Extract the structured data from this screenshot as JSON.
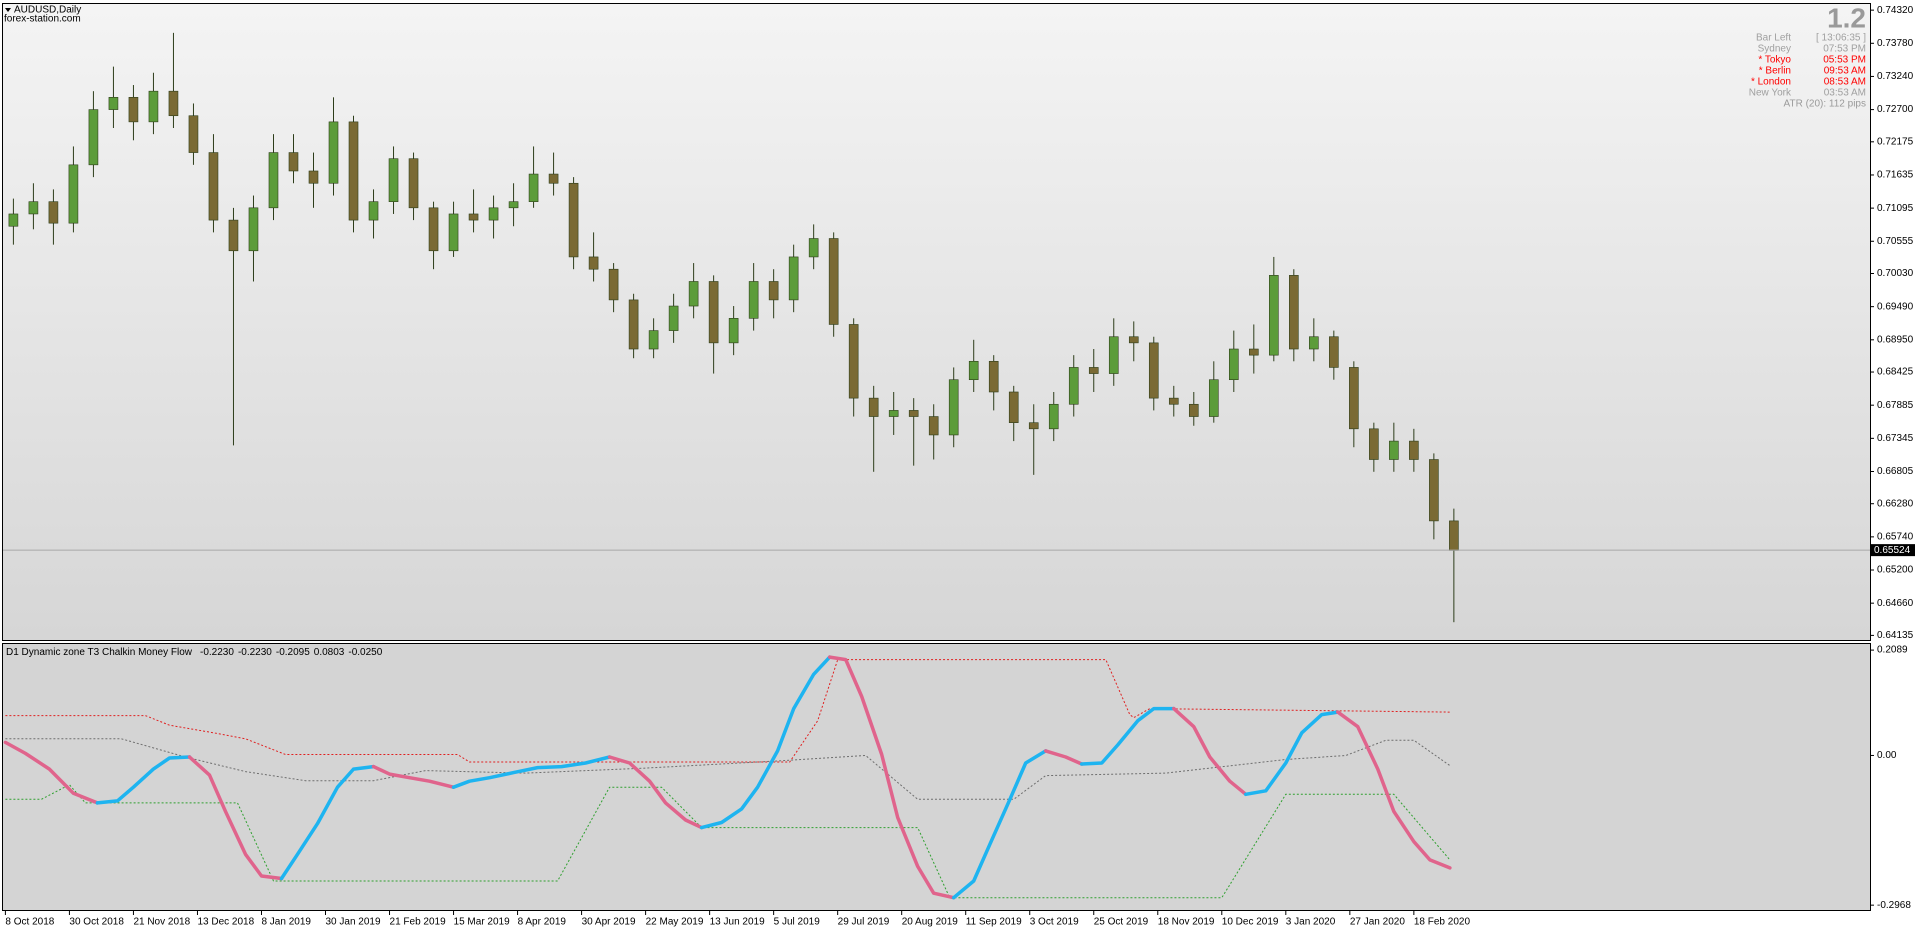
{
  "header": {
    "symbol": "AUDUSD,Daily",
    "source": "forex-station.com"
  },
  "info": {
    "big": "1.2",
    "rows": [
      {
        "label": "Bar Left",
        "value": "[ 13:06:35 ]",
        "color": "#a0a0a0"
      },
      {
        "label": "Sydney",
        "value": "07:53 PM",
        "color": "#a0a0a0"
      },
      {
        "label": "* Tokyo",
        "value": "05:53 PM",
        "color": "#ff0000"
      },
      {
        "label": "* Berlin",
        "value": "09:53 AM",
        "color": "#ff0000"
      },
      {
        "label": "* London",
        "value": "08:53 AM",
        "color": "#ff0000"
      },
      {
        "label": "New York",
        "value": "03:53 AM",
        "color": "#a0a0a0"
      }
    ],
    "atr": "ATR (20): 112 pips"
  },
  "chart_data": [
    {
      "type": "candlestick",
      "x": [
        2,
        7,
        12,
        17,
        22,
        27,
        32,
        37,
        42,
        47,
        52,
        57,
        62,
        67,
        72,
        77,
        82,
        87,
        92,
        97,
        102,
        107,
        112,
        117,
        122,
        127,
        132,
        137,
        142,
        147,
        152,
        157,
        162,
        167,
        172,
        177,
        182,
        187,
        192,
        197,
        202,
        207,
        212,
        217,
        222,
        227,
        232,
        237,
        242,
        247,
        252,
        257,
        262,
        267,
        272,
        277,
        282,
        287,
        292,
        297,
        302,
        307,
        312,
        317,
        322,
        327,
        332,
        337,
        342,
        347,
        352,
        357,
        362
      ],
      "open": [
        0.708,
        0.71,
        0.712,
        0.7085,
        0.718,
        0.727,
        0.729,
        0.725,
        0.73,
        0.726,
        0.72,
        0.709,
        0.704,
        0.711,
        0.72,
        0.717,
        0.715,
        0.725,
        0.709,
        0.712,
        0.719,
        0.711,
        0.704,
        0.71,
        0.709,
        0.711,
        0.712,
        0.7165,
        0.715,
        0.703,
        0.701,
        0.696,
        0.688,
        0.691,
        0.695,
        0.699,
        0.689,
        0.693,
        0.699,
        0.696,
        0.703,
        0.706,
        0.692,
        0.68,
        0.677,
        0.678,
        0.677,
        0.674,
        0.683,
        0.686,
        0.681,
        0.676,
        0.675,
        0.679,
        0.685,
        0.684,
        0.69,
        0.689,
        0.68,
        0.679,
        0.677,
        0.683,
        0.688,
        0.687,
        0.7,
        0.688,
        0.69,
        0.685,
        0.675,
        0.67,
        0.673,
        0.67,
        0.66
      ],
      "high": [
        0.7125,
        0.715,
        0.714,
        0.721,
        0.73,
        0.734,
        0.731,
        0.733,
        0.7395,
        0.728,
        0.723,
        0.711,
        0.713,
        0.723,
        0.723,
        0.72,
        0.729,
        0.726,
        0.714,
        0.721,
        0.72,
        0.712,
        0.712,
        0.714,
        0.713,
        0.715,
        0.721,
        0.72,
        0.716,
        0.707,
        0.702,
        0.697,
        0.693,
        0.697,
        0.702,
        0.7,
        0.695,
        0.702,
        0.701,
        0.705,
        0.7083,
        0.707,
        0.693,
        0.682,
        0.681,
        0.68,
        0.679,
        0.685,
        0.6895,
        0.687,
        0.682,
        0.679,
        0.681,
        0.687,
        0.688,
        0.693,
        0.6925,
        0.69,
        0.682,
        0.681,
        0.686,
        0.691,
        0.692,
        0.703,
        0.701,
        0.693,
        0.691,
        0.686,
        0.676,
        0.676,
        0.675,
        0.671,
        0.662
      ],
      "low": [
        0.705,
        0.7075,
        0.705,
        0.707,
        0.716,
        0.724,
        0.722,
        0.723,
        0.724,
        0.718,
        0.707,
        0.6723,
        0.699,
        0.709,
        0.715,
        0.711,
        0.713,
        0.707,
        0.706,
        0.71,
        0.709,
        0.701,
        0.703,
        0.707,
        0.706,
        0.708,
        0.711,
        0.713,
        0.701,
        0.699,
        0.694,
        0.6865,
        0.6865,
        0.689,
        0.693,
        0.684,
        0.687,
        0.691,
        0.693,
        0.694,
        0.701,
        0.69,
        0.677,
        0.668,
        0.674,
        0.669,
        0.67,
        0.672,
        0.681,
        0.678,
        0.673,
        0.6675,
        0.673,
        0.677,
        0.681,
        0.682,
        0.686,
        0.678,
        0.677,
        0.6755,
        0.676,
        0.681,
        0.684,
        0.686,
        0.686,
        0.686,
        0.683,
        0.672,
        0.668,
        0.668,
        0.668,
        0.657,
        0.6435
      ],
      "close": [
        0.71,
        0.712,
        0.7085,
        0.718,
        0.727,
        0.729,
        0.725,
        0.73,
        0.726,
        0.72,
        0.709,
        0.704,
        0.711,
        0.72,
        0.717,
        0.715,
        0.725,
        0.709,
        0.712,
        0.719,
        0.711,
        0.704,
        0.71,
        0.709,
        0.711,
        0.712,
        0.7165,
        0.715,
        0.703,
        0.701,
        0.696,
        0.688,
        0.691,
        0.695,
        0.699,
        0.689,
        0.693,
        0.699,
        0.696,
        0.703,
        0.706,
        0.692,
        0.68,
        0.677,
        0.678,
        0.677,
        0.674,
        0.683,
        0.686,
        0.681,
        0.676,
        0.675,
        0.679,
        0.685,
        0.684,
        0.69,
        0.689,
        0.68,
        0.679,
        0.677,
        0.683,
        0.688,
        0.687,
        0.7,
        0.688,
        0.69,
        0.685,
        0.675,
        0.67,
        0.673,
        0.67,
        0.66,
        0.6552
      ],
      "up_color": "#5c9c3a",
      "down_color": "#7a6a34",
      "xlim": [
        -0.6,
        466
      ],
      "ylim": [
        0.6406,
        0.7442
      ],
      "yticks": [
        {
          "value": 0.7432,
          "label": "0.74320"
        },
        {
          "value": 0.7378,
          "label": "0.73780"
        },
        {
          "value": 0.7324,
          "label": "0.73240"
        },
        {
          "value": 0.727,
          "label": "0.72700"
        },
        {
          "value": 0.72175,
          "label": "0.72175"
        },
        {
          "value": 0.71635,
          "label": "0.71635"
        },
        {
          "value": 0.71095,
          "label": "0.71095"
        },
        {
          "value": 0.70555,
          "label": "0.70555"
        },
        {
          "value": 0.7003,
          "label": "0.70030"
        },
        {
          "value": 0.6949,
          "label": "0.69490"
        },
        {
          "value": 0.6895,
          "label": "0.68950"
        },
        {
          "value": 0.68425,
          "label": "0.68425"
        },
        {
          "value": 0.67885,
          "label": "0.67885"
        },
        {
          "value": 0.67345,
          "label": "0.67345"
        },
        {
          "value": 0.66805,
          "label": "0.66805"
        },
        {
          "value": 0.6628,
          "label": "0.66280"
        },
        {
          "value": 0.6574,
          "label": "0.65740"
        },
        {
          "value": 0.652,
          "label": "0.65200"
        },
        {
          "value": 0.6466,
          "label": "0.64660"
        },
        {
          "value": 0.64135,
          "label": "0.64135"
        }
      ],
      "current": {
        "value": 0.65524,
        "label": "0.65524"
      }
    },
    {
      "type": "line",
      "title": "D1 Dynamic zone T3 Chalkin Money Flow",
      "readout": [
        "-0.2230",
        "-0.2230",
        "-0.2095",
        "0.0803",
        "-0.0250"
      ],
      "series": [
        {
          "color": "#e02020",
          "x": [
            0,
            35,
            41,
            52,
            60,
            70,
            113,
            116,
            196,
            203,
            208,
            275,
            281,
            282,
            286,
            361
          ],
          "values": [
            0.079,
            0.079,
            0.06,
            0.045,
            0.033,
            0.002,
            0.002,
            -0.013,
            -0.013,
            0.069,
            0.19,
            0.19,
            0.081,
            0.075,
            0.093,
            0.086
          ]
        },
        {
          "color": "#6e6e6e",
          "x": [
            0,
            29,
            45,
            60,
            75,
            92,
            105,
            130,
            160,
            195,
            215,
            228,
            252,
            260,
            290,
            320,
            335,
            345,
            352,
            361
          ],
          "values": [
            0.033,
            0.033,
            -0.003,
            -0.032,
            -0.05,
            -0.05,
            -0.03,
            -0.035,
            -0.025,
            -0.01,
            0.0,
            -0.087,
            -0.087,
            -0.04,
            -0.035,
            -0.008,
            0.0,
            0.03,
            0.03,
            -0.02
          ]
        },
        {
          "color": "#30a030",
          "x": [
            0,
            9,
            16,
            20,
            58,
            67,
            138,
            151,
            164,
            174,
            228,
            236,
            304,
            320,
            347,
            361
          ],
          "values": [
            -0.087,
            -0.087,
            -0.058,
            -0.094,
            -0.094,
            -0.249,
            -0.249,
            -0.063,
            -0.063,
            -0.143,
            -0.143,
            -0.282,
            -0.282,
            -0.077,
            -0.077,
            -0.207
          ]
        },
        {
          "up_color": "#1eb4f0",
          "down_color": "#e0648c",
          "x": [
            0,
            5,
            11,
            17,
            23,
            28,
            32,
            37,
            41,
            46,
            51,
            55,
            60,
            64,
            69,
            73,
            78,
            83,
            87,
            92,
            96,
            101,
            106,
            112,
            116,
            121,
            127,
            133,
            139,
            145,
            151,
            156,
            161,
            165,
            170,
            174,
            179,
            184,
            188,
            193,
            197,
            202,
            206,
            210,
            214,
            219,
            223,
            228,
            232,
            237,
            242,
            246,
            251,
            255,
            260,
            265,
            269,
            274,
            278,
            283,
            287,
            292,
            297,
            301,
            306,
            310,
            315,
            320,
            324,
            329,
            333,
            338,
            343,
            347,
            352,
            356,
            361
          ],
          "values": [
            0.026,
            0.004,
            -0.027,
            -0.075,
            -0.094,
            -0.09,
            -0.063,
            -0.027,
            -0.005,
            -0.003,
            -0.039,
            -0.111,
            -0.196,
            -0.239,
            -0.244,
            -0.196,
            -0.135,
            -0.063,
            -0.027,
            -0.022,
            -0.037,
            -0.044,
            -0.051,
            -0.063,
            -0.051,
            -0.044,
            -0.034,
            -0.024,
            -0.022,
            -0.015,
            -0.003,
            -0.015,
            -0.051,
            -0.094,
            -0.128,
            -0.143,
            -0.133,
            -0.106,
            -0.063,
            0.009,
            0.093,
            0.161,
            0.195,
            0.19,
            0.117,
            0.002,
            -0.123,
            -0.22,
            -0.273,
            -0.282,
            -0.249,
            -0.177,
            -0.088,
            -0.015,
            0.009,
            -0.003,
            -0.017,
            -0.015,
            0.021,
            0.069,
            0.093,
            0.093,
            0.057,
            -0.003,
            -0.051,
            -0.077,
            -0.07,
            -0.015,
            0.045,
            0.081,
            0.086,
            0.057,
            -0.027,
            -0.111,
            -0.171,
            -0.207,
            -0.223
          ]
        }
      ],
      "xlim": [
        -0.6,
        466
      ],
      "ylim": [
        -0.3064,
        0.221
      ],
      "yticks": [
        0.2089,
        {
          "value": 0,
          "label": "0.00"
        },
        -0.2968
      ],
      "xticks": [
        {
          "value": 0,
          "label": "8 Oct 2018"
        },
        {
          "value": 16,
          "label": "30 Oct 2018"
        },
        {
          "value": 32,
          "label": "21 Nov 2018"
        },
        {
          "value": 48,
          "label": "13 Dec 2018"
        },
        {
          "value": 64,
          "label": "8 Jan 2019"
        },
        {
          "value": 80,
          "label": "30 Jan 2019"
        },
        {
          "value": 96,
          "label": "21 Feb 2019"
        },
        {
          "value": 112,
          "label": "15 Mar 2019"
        },
        {
          "value": 128,
          "label": "8 Apr 2019"
        },
        {
          "value": 144,
          "label": "30 Apr 2019"
        },
        {
          "value": 160,
          "label": "22 May 2019"
        },
        {
          "value": 176,
          "label": "13 Jun 2019"
        },
        {
          "value": 192,
          "label": "5 Jul 2019"
        },
        {
          "value": 208,
          "label": "29 Jul 2019"
        },
        {
          "value": 224,
          "label": "20 Aug 2019"
        },
        {
          "value": 240,
          "label": "11 Sep 2019"
        },
        {
          "value": 256,
          "label": "3 Oct 2019"
        },
        {
          "value": 272,
          "label": "25 Oct 2019"
        },
        {
          "value": 288,
          "label": "18 Nov 2019"
        },
        {
          "value": 304,
          "label": "10 Dec 2019"
        },
        {
          "value": 320,
          "label": "3 Jan 2020"
        },
        {
          "value": 336,
          "label": "27 Jan 2020"
        },
        {
          "value": 352,
          "label": "18 Feb 2020"
        }
      ]
    }
  ]
}
